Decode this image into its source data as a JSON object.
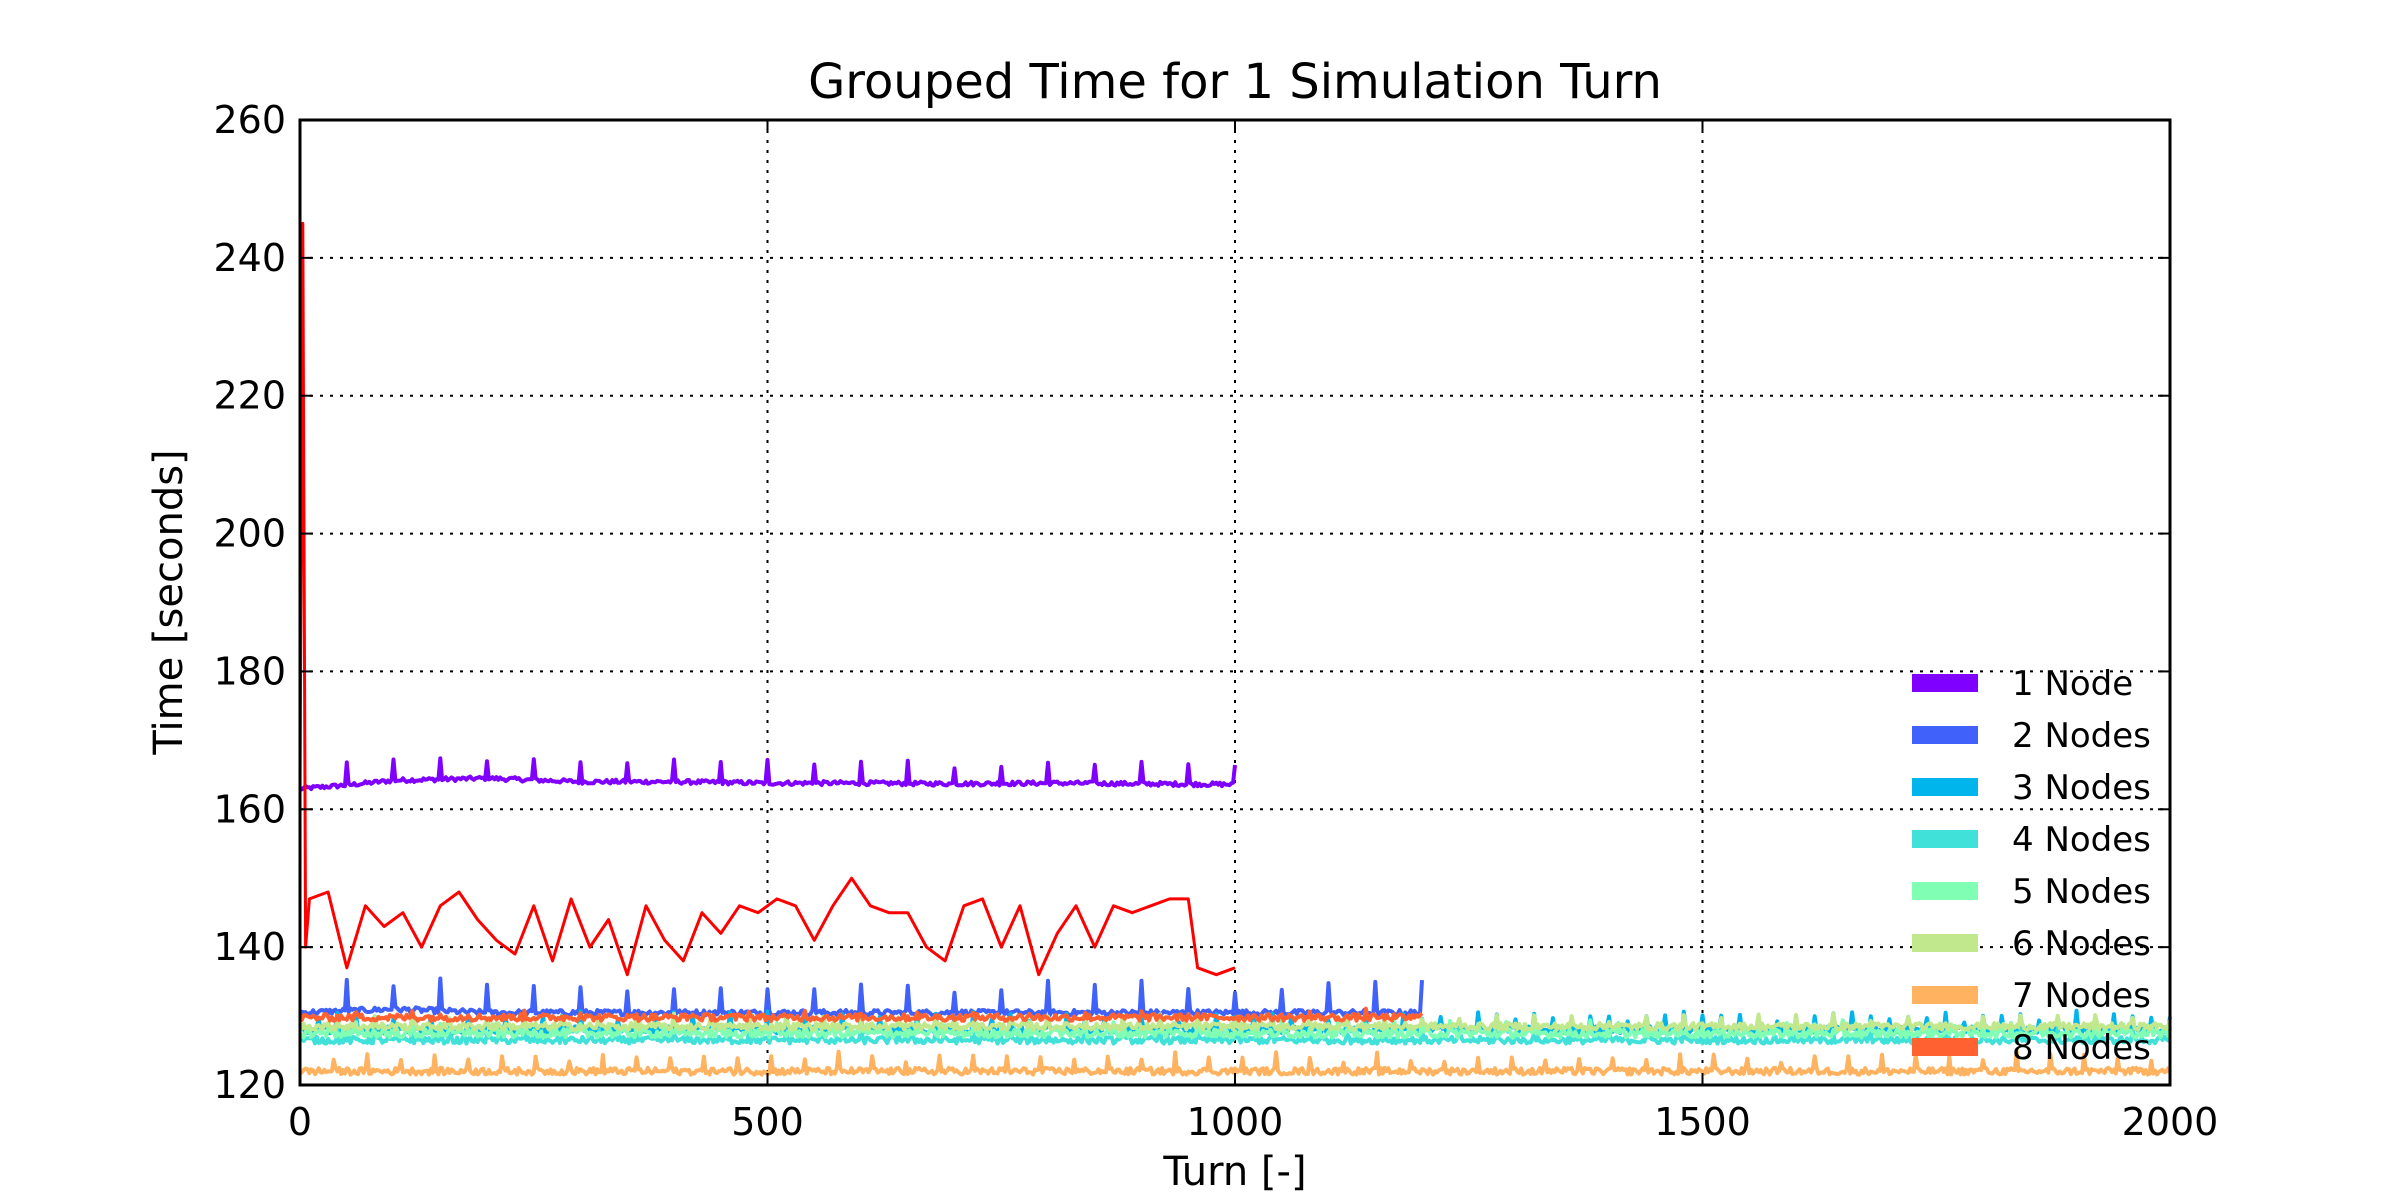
{
  "chart_data": {
    "type": "line",
    "title": "Grouped Time for 1 Simulation Turn",
    "xlabel": "Turn [-]",
    "ylabel": "Time [seconds]",
    "xlim": [
      0,
      2000
    ],
    "ylim": [
      120,
      260
    ],
    "xticks": [
      0,
      500,
      1000,
      1500,
      2000
    ],
    "yticks": [
      120,
      140,
      160,
      180,
      200,
      220,
      240,
      260
    ],
    "grid": true,
    "legend_position": "lower-right",
    "series": [
      {
        "name": "1 Node",
        "color": "#8000ff",
        "x": [
          0,
          50,
          100,
          200,
          300,
          400,
          500,
          600,
          700,
          800,
          900,
          1000
        ],
        "y": [
          163,
          163.5,
          164.2,
          164.5,
          164,
          164,
          163.8,
          163.8,
          163.7,
          163.8,
          163.7,
          163.6
        ],
        "base": 163.6,
        "noise": 0.3,
        "spike_every": 25,
        "spike": 3.5
      },
      {
        "name": "2 Nodes",
        "color": "#4062fa",
        "x": [
          0,
          100,
          200,
          400,
          600,
          800,
          1000,
          1200
        ],
        "y": [
          130.5,
          131,
          130.5,
          130.5,
          130.5,
          130.5,
          130.5,
          130.5
        ],
        "base": 130.5,
        "noise": 0.4,
        "spike_every": 25,
        "spike": 5
      },
      {
        "name": "3 Nodes",
        "color": "#00b5eb",
        "x": [
          0,
          500,
          1000,
          1500,
          2000
        ],
        "y": [
          128,
          128,
          128,
          128,
          128
        ],
        "base": 128,
        "noise": 0.5,
        "spike_every": 10,
        "spike": 2.5
      },
      {
        "name": "4 Nodes",
        "color": "#3fe1d8",
        "x": [
          0,
          500,
          1000,
          1500,
          2000
        ],
        "y": [
          126.5,
          126.5,
          126.5,
          126.5,
          126.5
        ],
        "base": 126.5,
        "noise": 0.5,
        "spike_every": 20,
        "spike": 1.5
      },
      {
        "name": "5 Nodes",
        "color": "#80feb3",
        "x": [
          0,
          500,
          1000,
          1500,
          2000
        ],
        "y": [
          127.5,
          127.5,
          127.5,
          127.5,
          127.5
        ],
        "base": 127.5,
        "noise": 0.6,
        "spike_every": 15,
        "spike": 1.5
      },
      {
        "name": "6 Nodes",
        "color": "#c1e88c",
        "x": [
          0,
          500,
          1000,
          1500,
          2000
        ],
        "y": [
          128.5,
          128.5,
          128.5,
          128.5,
          128.5
        ],
        "base": 128.5,
        "noise": 0.5,
        "spike_every": 20,
        "spike": 1.5
      },
      {
        "name": "7 Nodes",
        "color": "#ffb360",
        "x": [
          0,
          500,
          1000,
          1500,
          2000
        ],
        "y": [
          122,
          122,
          122,
          122,
          122
        ],
        "base": 122,
        "noise": 0.5,
        "spike_every": 18,
        "spike": 2.5
      },
      {
        "name": "8 Nodes",
        "color": "#ff6230",
        "x": [
          0,
          400,
          800,
          1200
        ],
        "y": [
          129.8,
          129.8,
          129.8,
          129.8
        ],
        "base": 129.8,
        "noise": 0.5,
        "spike_every": 30,
        "spike": 1
      },
      {
        "name": "",
        "color": "#ff0000",
        "x": [
          0,
          3,
          6,
          10,
          30,
          50,
          70,
          90,
          110,
          130,
          150,
          170,
          190,
          210,
          230,
          250,
          270,
          290,
          310,
          330,
          350,
          370,
          390,
          410,
          430,
          450,
          470,
          490,
          510,
          530,
          550,
          570,
          590,
          610,
          630,
          650,
          670,
          690,
          710,
          730,
          750,
          770,
          790,
          810,
          830,
          850,
          870,
          890,
          910,
          930,
          950,
          960,
          980,
          1000
        ],
        "y": [
          163,
          245,
          140,
          147,
          148,
          137,
          146,
          143,
          145,
          140,
          146,
          148,
          144,
          141,
          139,
          146,
          138,
          147,
          140,
          144,
          136,
          146,
          141,
          138,
          145,
          142,
          146,
          145,
          147,
          146,
          141,
          146,
          150,
          146,
          145,
          145,
          140,
          138,
          146,
          147,
          140,
          146,
          136,
          142,
          146,
          140,
          146,
          145,
          146,
          147,
          147,
          137,
          136,
          137
        ],
        "base": 0,
        "noise": 0,
        "spike_every": 0,
        "spike": 0
      }
    ]
  }
}
